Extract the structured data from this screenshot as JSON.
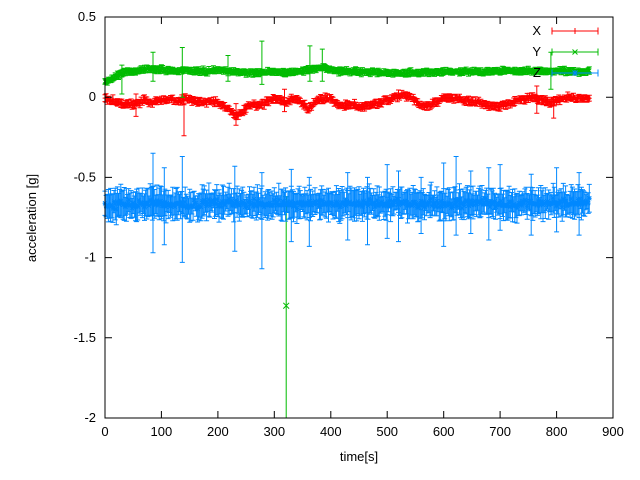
{
  "chart_data": {
    "type": "scatter",
    "style": "errorbars",
    "title": "",
    "xlabel": "time[s]",
    "ylabel": "acceleration [g]",
    "xlim": [
      0,
      900
    ],
    "ylim": [
      -2,
      0.5
    ],
    "xticks": [
      0,
      100,
      200,
      300,
      400,
      500,
      600,
      700,
      800,
      900
    ],
    "yticks": {
      "values": [
        0.5,
        0,
        -0.5,
        -1,
        -1.5,
        -2
      ],
      "labels": [
        "0.5",
        "0",
        "-0.5",
        "-1",
        "-1.5",
        "-2"
      ]
    },
    "grid": false,
    "axis_color": "#000000",
    "background": "#ffffff",
    "sample_step": 2,
    "legend": {
      "position": "top-right-inside",
      "entries": [
        {
          "label": "X",
          "color": "#ff0000",
          "marker": "plus"
        },
        {
          "label": "Y",
          "color": "#00bb00",
          "marker": "cross"
        },
        {
          "label": "Z",
          "color": "#0088ff",
          "marker": "star"
        }
      ]
    },
    "series": [
      {
        "name": "X",
        "color": "#ff0000",
        "marker": "plus",
        "seed": 101,
        "t_start": 0,
        "t_end": 858,
        "noise_sd": 0.01,
        "err_typ": 0.012,
        "err_rand": 0.015,
        "anchors": [
          [
            0,
            -0.005
          ],
          [
            15,
            -0.02
          ],
          [
            35,
            -0.045
          ],
          [
            55,
            -0.04
          ],
          [
            70,
            -0.02
          ],
          [
            85,
            -0.035
          ],
          [
            100,
            -0.02
          ],
          [
            115,
            -0.01
          ],
          [
            130,
            -0.025
          ],
          [
            145,
            -0.01
          ],
          [
            160,
            -0.02
          ],
          [
            175,
            -0.03
          ],
          [
            190,
            -0.02
          ],
          [
            205,
            -0.045
          ],
          [
            220,
            -0.08
          ],
          [
            235,
            -0.115
          ],
          [
            245,
            -0.08
          ],
          [
            255,
            -0.05
          ],
          [
            265,
            -0.04
          ],
          [
            275,
            -0.055
          ],
          [
            290,
            -0.02
          ],
          [
            300,
            -0.005
          ],
          [
            310,
            -0.02
          ],
          [
            320,
            -0.035
          ],
          [
            330,
            -0.015
          ],
          [
            340,
            -0.01
          ],
          [
            350,
            -0.04
          ],
          [
            360,
            -0.07
          ],
          [
            370,
            -0.045
          ],
          [
            380,
            -0.015
          ],
          [
            390,
            -0.005
          ],
          [
            400,
            -0.015
          ],
          [
            410,
            -0.04
          ],
          [
            425,
            -0.055
          ],
          [
            440,
            -0.045
          ],
          [
            455,
            -0.06
          ],
          [
            470,
            -0.05
          ],
          [
            485,
            -0.04
          ],
          [
            500,
            -0.02
          ],
          [
            515,
            0.005
          ],
          [
            530,
            0.015
          ],
          [
            545,
            -0.005
          ],
          [
            560,
            -0.05
          ],
          [
            575,
            -0.055
          ],
          [
            590,
            -0.025
          ],
          [
            605,
            -0.005
          ],
          [
            620,
            -0.01
          ],
          [
            640,
            -0.02
          ],
          [
            660,
            -0.03
          ],
          [
            680,
            -0.05
          ],
          [
            700,
            -0.055
          ],
          [
            715,
            -0.04
          ],
          [
            730,
            -0.02
          ],
          [
            745,
            -0.01
          ],
          [
            760,
            -0.005
          ],
          [
            775,
            -0.02
          ],
          [
            790,
            -0.03
          ],
          [
            805,
            -0.015
          ],
          [
            820,
            -0.005
          ],
          [
            840,
            -0.01
          ],
          [
            858,
            -0.01
          ]
        ],
        "err_spikes": [
          [
            55,
            0.02,
            -0.12
          ],
          [
            140,
            0.02,
            -0.24
          ],
          [
            232,
            -0.04,
            -0.175
          ],
          [
            318,
            0.05,
            -0.09
          ],
          [
            765,
            0.07,
            -0.1
          ],
          [
            795,
            0.0,
            -0.13
          ]
        ],
        "outliers": []
      },
      {
        "name": "Y",
        "color": "#00bb00",
        "marker": "cross",
        "seed": 202,
        "t_start": 0,
        "t_end": 858,
        "noise_sd": 0.007,
        "err_typ": 0.012,
        "err_rand": 0.012,
        "anchors": [
          [
            0,
            0.1
          ],
          [
            10,
            0.11
          ],
          [
            25,
            0.14
          ],
          [
            40,
            0.16
          ],
          [
            55,
            0.165
          ],
          [
            70,
            0.17
          ],
          [
            85,
            0.175
          ],
          [
            100,
            0.17
          ],
          [
            115,
            0.165
          ],
          [
            130,
            0.165
          ],
          [
            145,
            0.17
          ],
          [
            160,
            0.165
          ],
          [
            175,
            0.16
          ],
          [
            190,
            0.165
          ],
          [
            205,
            0.17
          ],
          [
            220,
            0.16
          ],
          [
            240,
            0.155
          ],
          [
            260,
            0.15
          ],
          [
            280,
            0.155
          ],
          [
            300,
            0.16
          ],
          [
            320,
            0.155
          ],
          [
            340,
            0.16
          ],
          [
            360,
            0.17
          ],
          [
            380,
            0.18
          ],
          [
            390,
            0.185
          ],
          [
            400,
            0.17
          ],
          [
            415,
            0.165
          ],
          [
            430,
            0.16
          ],
          [
            450,
            0.16
          ],
          [
            470,
            0.155
          ],
          [
            490,
            0.15
          ],
          [
            510,
            0.15
          ],
          [
            530,
            0.15
          ],
          [
            550,
            0.155
          ],
          [
            570,
            0.155
          ],
          [
            590,
            0.155
          ],
          [
            610,
            0.16
          ],
          [
            630,
            0.16
          ],
          [
            650,
            0.16
          ],
          [
            670,
            0.16
          ],
          [
            690,
            0.165
          ],
          [
            710,
            0.165
          ],
          [
            730,
            0.16
          ],
          [
            750,
            0.165
          ],
          [
            770,
            0.165
          ],
          [
            790,
            0.16
          ],
          [
            810,
            0.165
          ],
          [
            830,
            0.16
          ],
          [
            858,
            0.16
          ]
        ],
        "err_spikes": [
          [
            30,
            0.2,
            0.02
          ],
          [
            85,
            0.28,
            0.1
          ],
          [
            137,
            0.31,
            0.0
          ],
          [
            218,
            0.26,
            0.1
          ],
          [
            278,
            0.35,
            0.08
          ],
          [
            363,
            0.32,
            0.1
          ],
          [
            385,
            0.3,
            0.1
          ],
          [
            790,
            0.28,
            0.05
          ]
        ],
        "outliers": [
          {
            "t": 321,
            "y": -1.3,
            "bar_high": -0.62,
            "bar_low": -2.0
          }
        ]
      },
      {
        "name": "Z",
        "color": "#0088ff",
        "marker": "star",
        "seed": 303,
        "t_start": 0,
        "t_end": 858,
        "noise_sd": 0.018,
        "err_typ": 0.045,
        "err_rand": 0.06,
        "anchors": [
          [
            0,
            -0.675
          ],
          [
            30,
            -0.668
          ],
          [
            60,
            -0.67
          ],
          [
            90,
            -0.662
          ],
          [
            120,
            -0.668
          ],
          [
            150,
            -0.67
          ],
          [
            180,
            -0.662
          ],
          [
            210,
            -0.666
          ],
          [
            240,
            -0.664
          ],
          [
            270,
            -0.668
          ],
          [
            300,
            -0.662
          ],
          [
            330,
            -0.666
          ],
          [
            360,
            -0.664
          ],
          [
            390,
            -0.662
          ],
          [
            420,
            -0.666
          ],
          [
            450,
            -0.662
          ],
          [
            480,
            -0.664
          ],
          [
            510,
            -0.662
          ],
          [
            540,
            -0.664
          ],
          [
            570,
            -0.662
          ],
          [
            600,
            -0.662
          ],
          [
            630,
            -0.66
          ],
          [
            660,
            -0.662
          ],
          [
            690,
            -0.66
          ],
          [
            720,
            -0.662
          ],
          [
            750,
            -0.66
          ],
          [
            780,
            -0.662
          ],
          [
            810,
            -0.658
          ],
          [
            840,
            -0.66
          ],
          [
            858,
            -0.658
          ]
        ],
        "err_spikes": [
          [
            85,
            -0.35,
            -0.97
          ],
          [
            105,
            -0.44,
            -0.92
          ],
          [
            137,
            -0.37,
            -1.03
          ],
          [
            230,
            -0.43,
            -0.96
          ],
          [
            278,
            -0.47,
            -1.07
          ],
          [
            330,
            -0.45,
            -0.9
          ],
          [
            362,
            -0.5,
            -0.93
          ],
          [
            430,
            -0.47,
            -0.89
          ],
          [
            465,
            -0.5,
            -0.92
          ],
          [
            500,
            -0.42,
            -0.88
          ],
          [
            520,
            -0.46,
            -0.9
          ],
          [
            560,
            -0.5,
            -0.85
          ],
          [
            600,
            -0.41,
            -0.93
          ],
          [
            622,
            -0.37,
            -0.86
          ],
          [
            648,
            -0.46,
            -0.85
          ],
          [
            680,
            -0.44,
            -0.89
          ],
          [
            700,
            -0.42,
            -0.83
          ],
          [
            755,
            -0.48,
            -0.86
          ],
          [
            800,
            -0.44,
            -0.84
          ],
          [
            840,
            -0.47,
            -0.86
          ]
        ],
        "outliers": []
      }
    ]
  }
}
